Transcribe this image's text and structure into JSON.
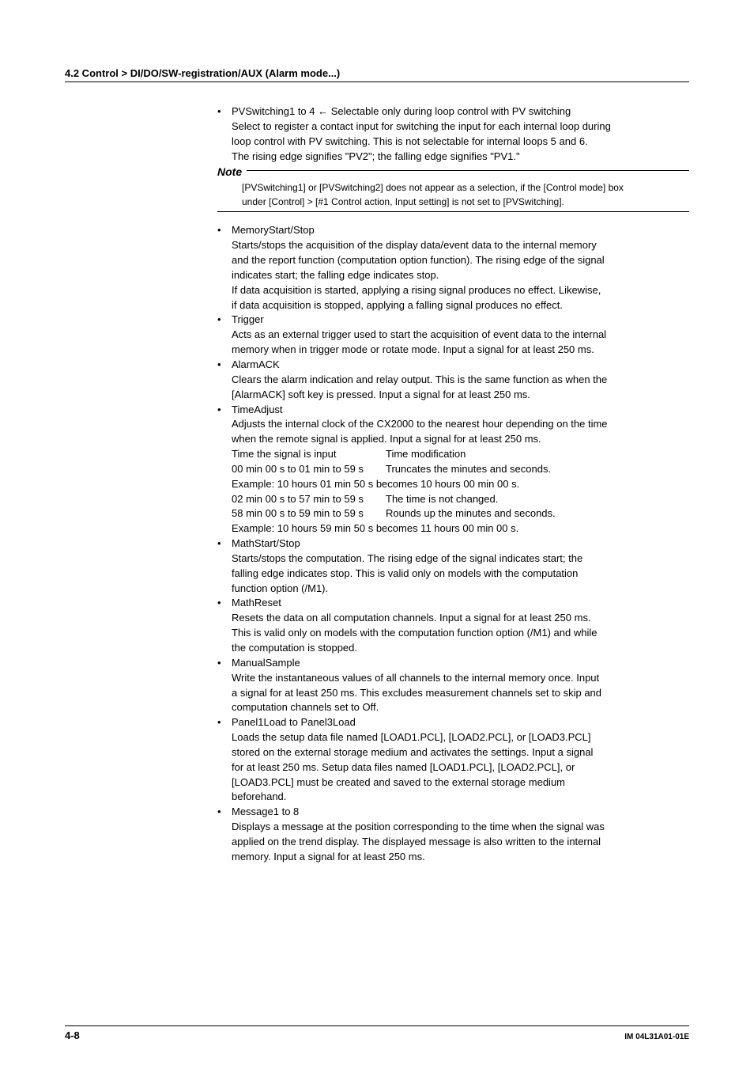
{
  "header": {
    "section": "4.2  Control > DI/DO/SW-registration/AUX (Alarm mode...)"
  },
  "pvswitching": {
    "title": "PVSwitching1 to 4 ← Selectable only during loop control with PV switching",
    "l1": "Select to register a contact input for switching the input for each internal loop during",
    "l2": "loop control with PV switching.  This is not selectable for internal loops 5 and 6.",
    "l3": "The rising edge signifies \"PV2\"; the falling edge signifies \"PV1.\""
  },
  "note": {
    "label": "Note",
    "l1": "[PVSwitching1] or [PVSwitching2] does not appear as a selection, if the [Control mode] box",
    "l2": "under [Control] > [#1 Control action, Input setting] is not set to [PVSwitching]."
  },
  "memory": {
    "title": "MemoryStart/Stop",
    "l1": "Starts/stops the acquisition of the display data/event data to the internal memory",
    "l2": "and the report function (computation option function).  The rising edge of the signal",
    "l3": "indicates start; the falling edge indicates stop.",
    "l4": "If data acquisition is started, applying a rising signal produces no effect.  Likewise,",
    "l5": "if data acquisition is stopped, applying a falling signal produces no effect."
  },
  "trigger": {
    "title": "Trigger",
    "l1": "Acts as an external trigger used to start the acquisition of event data to the internal",
    "l2": "memory when in trigger mode or rotate mode.  Input a signal for at least 250 ms."
  },
  "alarmack": {
    "title": "AlarmACK",
    "l1": "Clears the alarm indication and relay output.  This is the same function as when the",
    "l2": "[AlarmACK] soft key is pressed.  Input a signal for at least 250 ms."
  },
  "timeadjust": {
    "title": "TimeAdjust",
    "l1": "Adjusts the internal clock of the CX2000 to the nearest hour depending on the time",
    "l2": "when the remote signal is applied.  Input a signal for at least 250 ms.",
    "h1": "Time the signal is input",
    "h2": "Time modification",
    "r1c1": "00 min 00 s to 01 min to 59 s",
    "r1c2": "Truncates the minutes and seconds.",
    "ex1": "Example: 10 hours 01 min 50 s becomes 10 hours 00 min 00 s.",
    "r2c1": "02 min 00 s to 57 min to 59 s",
    "r2c2": "The time is not changed.",
    "r3c1": "58 min 00 s to 59 min to 59 s",
    "r3c2": "Rounds up the minutes and seconds.",
    "ex2": "Example: 10 hours 59 min 50 s becomes 11 hours 00 min 00 s."
  },
  "mathstart": {
    "title": "MathStart/Stop",
    "l1": "Starts/stops the computation.  The rising edge of the signal indicates start; the",
    "l2": "falling edge indicates stop.  This is valid only on models with the computation",
    "l3": "function option (/M1)."
  },
  "mathreset": {
    "title": "MathReset",
    "l1": "Resets the data on all computation channels.  Input a signal for at least 250 ms.",
    "l2": "This is valid only on models with the computation function option (/M1) and while",
    "l3": "the computation is stopped."
  },
  "manualsample": {
    "title": "ManualSample",
    "l1": "Write the instantaneous values of all channels to the internal memory once.  Input",
    "l2": "a signal for at least 250 ms.  This excludes measurement channels set to skip and",
    "l3": "computation channels set to Off."
  },
  "panelload": {
    "title": "Panel1Load to Panel3Load",
    "l1": "Loads the setup data file named [LOAD1.PCL], [LOAD2.PCL], or [LOAD3.PCL]",
    "l2": "stored on the external storage medium and activates the settings.  Input a signal",
    "l3": "for at least 250 ms.  Setup data files named [LOAD1.PCL], [LOAD2.PCL], or",
    "l4": "[LOAD3.PCL] must be created and saved to the external storage medium",
    "l5": "beforehand."
  },
  "message": {
    "title": "Message1 to 8",
    "l1": "Displays a message at the position corresponding to the time when the signal was",
    "l2": "applied on the trend display.  The displayed message is also written to the internal",
    "l3": "memory.  Input a signal for at least 250 ms."
  },
  "footer": {
    "page": "4-8",
    "docid": "IM 04L31A01-01E"
  }
}
